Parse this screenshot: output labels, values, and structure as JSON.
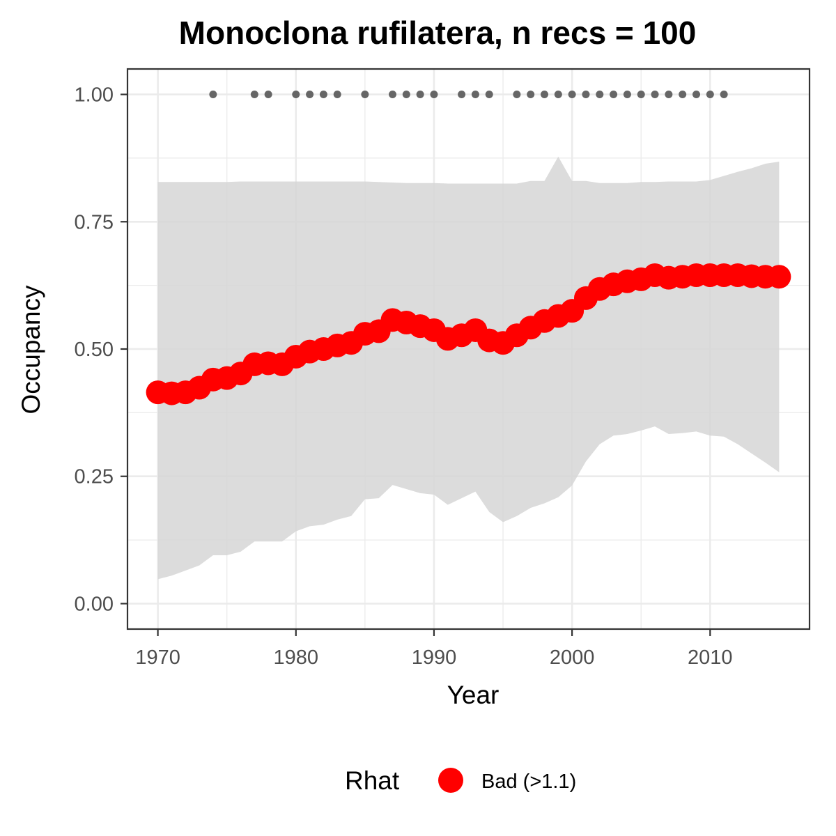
{
  "chart_data": {
    "type": "line",
    "title": "Monoclona rufilatera, n recs = 100",
    "xlabel": "Year",
    "ylabel": "Occupancy",
    "xlim": [
      1967.8,
      2017.2
    ],
    "ylim": [
      -0.05,
      1.05
    ],
    "x_ticks": [
      1970,
      1980,
      1990,
      2000,
      2010
    ],
    "y_ticks": [
      0.0,
      0.25,
      0.5,
      0.75,
      1.0
    ],
    "x_tick_labels": [
      "1970",
      "1980",
      "1990",
      "2000",
      "2010"
    ],
    "y_tick_labels": [
      "0.00",
      "0.25",
      "0.50",
      "0.75",
      "1.00"
    ],
    "grid": true,
    "colors": {
      "point": "#ff0000",
      "ribbon": "#d6d6d6",
      "record_dot": "#666666",
      "grid_major": "#ebebeb",
      "panel_border": "#333333"
    },
    "series": [
      {
        "x": [
          1970,
          1971,
          1972,
          1973,
          1974,
          1975,
          1976,
          1977,
          1978,
          1979,
          1980,
          1981,
          1982,
          1983,
          1984,
          1985,
          1986,
          1987,
          1988,
          1989,
          1990,
          1991,
          1992,
          1993,
          1994,
          1995,
          1996,
          1997,
          1998,
          1999,
          2000,
          2001,
          2002,
          2003,
          2004,
          2005,
          2006,
          2007,
          2008,
          2009,
          2010,
          2011,
          2012,
          2013,
          2014,
          2015
        ],
        "mean": [
          0.415,
          0.413,
          0.415,
          0.424,
          0.44,
          0.443,
          0.452,
          0.47,
          0.472,
          0.47,
          0.485,
          0.495,
          0.5,
          0.507,
          0.512,
          0.53,
          0.535,
          0.557,
          0.552,
          0.545,
          0.537,
          0.52,
          0.527,
          0.537,
          0.517,
          0.512,
          0.527,
          0.542,
          0.555,
          0.565,
          0.575,
          0.6,
          0.618,
          0.627,
          0.633,
          0.637,
          0.645,
          0.64,
          0.642,
          0.645,
          0.645,
          0.645,
          0.645,
          0.643,
          0.642,
          0.642
        ],
        "upper": [
          0.828,
          0.828,
          0.828,
          0.828,
          0.828,
          0.828,
          0.829,
          0.829,
          0.829,
          0.829,
          0.829,
          0.829,
          0.829,
          0.829,
          0.829,
          0.829,
          0.828,
          0.827,
          0.826,
          0.826,
          0.826,
          0.825,
          0.825,
          0.825,
          0.825,
          0.825,
          0.825,
          0.83,
          0.83,
          0.878,
          0.83,
          0.83,
          0.826,
          0.826,
          0.826,
          0.828,
          0.828,
          0.829,
          0.829,
          0.829,
          0.832,
          0.84,
          0.848,
          0.855,
          0.864,
          0.868
        ],
        "lower": [
          0.048,
          0.055,
          0.065,
          0.075,
          0.095,
          0.095,
          0.102,
          0.122,
          0.122,
          0.122,
          0.142,
          0.152,
          0.155,
          0.165,
          0.172,
          0.205,
          0.207,
          0.233,
          0.225,
          0.217,
          0.214,
          0.194,
          0.207,
          0.22,
          0.18,
          0.16,
          0.172,
          0.188,
          0.197,
          0.209,
          0.232,
          0.279,
          0.313,
          0.33,
          0.333,
          0.34,
          0.348,
          0.333,
          0.335,
          0.338,
          0.33,
          0.328,
          0.313,
          0.295,
          0.277,
          0.258
        ]
      }
    ],
    "record_years": [
      1974,
      1977,
      1978,
      1980,
      1981,
      1982,
      1983,
      1985,
      1987,
      1988,
      1989,
      1990,
      1992,
      1993,
      1994,
      1996,
      1997,
      1998,
      1999,
      2000,
      2001,
      2002,
      2003,
      2004,
      2005,
      2006,
      2007,
      2008,
      2009,
      2010,
      2011
    ],
    "record_value": 1.0,
    "legend": {
      "title": "Rhat",
      "entries": [
        {
          "label": "Bad (>1.1)",
          "color": "#ff0000"
        }
      ],
      "position": "bottom"
    }
  }
}
